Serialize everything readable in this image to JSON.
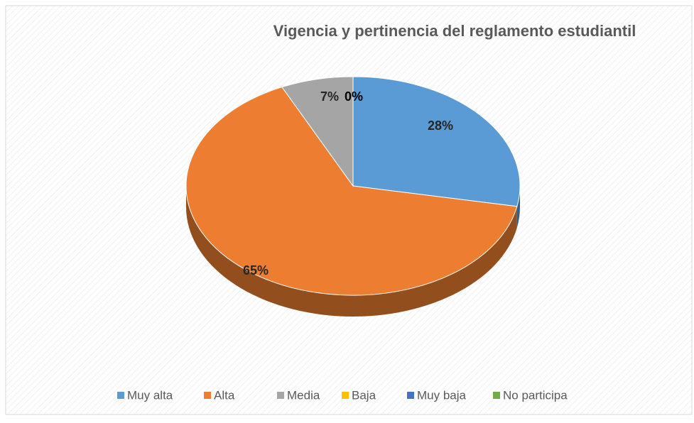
{
  "chart_data": {
    "type": "pie",
    "title": "Vigencia y pertinencia del reglamento estudiantil",
    "categories": [
      "Muy alta",
      "Alta",
      "Media",
      "Baja",
      "Muy baja",
      "No participa"
    ],
    "values": [
      28,
      65,
      7,
      0,
      0,
      0
    ],
    "value_labels": [
      "28%",
      "65%",
      "7%",
      "0%",
      null,
      null
    ],
    "colors": [
      "#5b9bd5",
      "#ed7d31",
      "#a5a5a5",
      "#ffc000",
      "#4472c4",
      "#70ad47"
    ],
    "legend": "bottom"
  }
}
